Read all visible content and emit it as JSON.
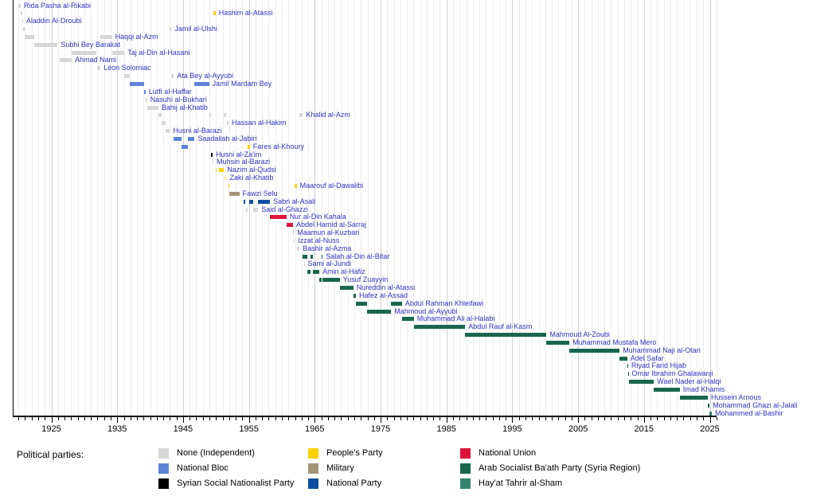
{
  "chart_data": {
    "type": "timeline",
    "title": "",
    "label_color": "#3032c0",
    "axis": {
      "unit": "year",
      "min": 1920,
      "max": 2026,
      "decade_labels": [
        "1925",
        "1935",
        "1945",
        "1955",
        "1965",
        "1975",
        "1985",
        "1995",
        "2005",
        "2015",
        "2025"
      ]
    },
    "legend": {
      "heading": "Political parties:",
      "columns": [
        [
          "none",
          "national_bloc",
          "ssnp"
        ],
        [
          "peoples",
          "military",
          "national_party"
        ],
        [
          "national_union",
          "baath",
          "hts"
        ]
      ]
    },
    "parties": {
      "none": {
        "label": "None (Independent)",
        "color": "#d6d6d6"
      },
      "national_bloc": {
        "label": "National Bloc",
        "color": "#5e84d8"
      },
      "ssnp": {
        "label": "Syrian Social Nationalist Party",
        "color": "#000000"
      },
      "peoples": {
        "label": "People's Party",
        "color": "#fbd104"
      },
      "military": {
        "label": "Military",
        "color": "#a49577"
      },
      "national_party": {
        "label": "National Party",
        "color": "#0d4ea3"
      },
      "national_union": {
        "label": "National Union",
        "color": "#dc143c"
      },
      "baath": {
        "label": "Arab Socialist Ba'ath Party (Syria Region)",
        "color": "#17664d"
      },
      "hts": {
        "label": "Hay'at Tahrir al-Sham",
        "color": "#318270"
      }
    },
    "people": [
      {
        "name": "Rida Pasha al-Rikabi",
        "terms": [
          {
            "start": 1920.0,
            "end": 1920.35,
            "party": "none"
          }
        ]
      },
      {
        "name": "Hashim al-Atassi",
        "terms": [
          {
            "start": 1920.35,
            "end": 1920.6,
            "party": "none"
          },
          {
            "start": 1949.6,
            "end": 1949.95,
            "party": "peoples"
          }
        ]
      },
      {
        "name": "Aladdin Al-Droubi",
        "terms": [
          {
            "start": 1920.55,
            "end": 1920.7,
            "party": "none"
          }
        ]
      },
      {
        "name": "Jamil al-Ulshi",
        "terms": [
          {
            "start": 1920.7,
            "end": 1920.95,
            "party": "none"
          },
          {
            "start": 1943.0,
            "end": 1943.25,
            "party": "none"
          }
        ]
      },
      {
        "name": "Haqqi al-Azm",
        "terms": [
          {
            "start": 1920.95,
            "end": 1922.45,
            "party": "none"
          },
          {
            "start": 1932.45,
            "end": 1934.2,
            "party": "none"
          }
        ]
      },
      {
        "name": "Subhi Bey Barakat",
        "terms": [
          {
            "start": 1922.45,
            "end": 1925.95,
            "party": "none"
          }
        ]
      },
      {
        "name": "Taj al-Din al-Hasani",
        "terms": [
          {
            "start": 1928.1,
            "end": 1931.9,
            "party": "none"
          },
          {
            "start": 1934.2,
            "end": 1936.1,
            "party": "none"
          }
        ]
      },
      {
        "name": "Ahmad Nami",
        "terms": [
          {
            "start": 1926.3,
            "end": 1928.1,
            "party": "none"
          }
        ]
      },
      {
        "name": "Léon Solomiac",
        "terms": [
          {
            "start": 1931.9,
            "end": 1932.45,
            "party": "none"
          }
        ]
      },
      {
        "name": "Ata Bey al-Ayyubi",
        "terms": [
          {
            "start": 1936.1,
            "end": 1936.95,
            "party": "none"
          },
          {
            "start": 1943.25,
            "end": 1943.6,
            "party": "none"
          }
        ]
      },
      {
        "name": "Jamil Mardam Bey",
        "terms": [
          {
            "start": 1936.95,
            "end": 1939.1,
            "party": "national_bloc"
          },
          {
            "start": 1946.75,
            "end": 1948.95,
            "party": "national_bloc"
          }
        ]
      },
      {
        "name": "Lutfi al-Haffar",
        "terms": [
          {
            "start": 1939.1,
            "end": 1939.3,
            "party": "national_bloc"
          }
        ]
      },
      {
        "name": "Nasuhi al-Bukhari",
        "terms": [
          {
            "start": 1939.3,
            "end": 1939.55,
            "party": "none"
          }
        ]
      },
      {
        "name": "Bahij al-Khatib",
        "terms": [
          {
            "start": 1939.55,
            "end": 1941.25,
            "party": "none"
          }
        ]
      },
      {
        "name": "Khalid al-Azm",
        "terms": [
          {
            "start": 1941.25,
            "end": 1941.7,
            "party": "none"
          },
          {
            "start": 1948.95,
            "end": 1949.25,
            "party": "none"
          },
          {
            "start": 1951.2,
            "end": 1951.6,
            "party": "none"
          },
          {
            "start": 1962.7,
            "end": 1963.2,
            "party": "none"
          }
        ]
      },
      {
        "name": "Hassan al-Hakim",
        "terms": [
          {
            "start": 1941.7,
            "end": 1942.3,
            "party": "none"
          },
          {
            "start": 1951.6,
            "end": 1951.9,
            "party": "none"
          }
        ]
      },
      {
        "name": "Husni al-Barazi",
        "terms": [
          {
            "start": 1942.3,
            "end": 1943.0,
            "party": "none"
          }
        ]
      },
      {
        "name": "Saadallah al-Jabiri",
        "terms": [
          {
            "start": 1943.6,
            "end": 1944.8,
            "party": "national_bloc"
          },
          {
            "start": 1945.75,
            "end": 1946.75,
            "party": "national_bloc"
          }
        ]
      },
      {
        "name": "Fares al-Khoury",
        "terms": [
          {
            "start": 1944.8,
            "end": 1945.75,
            "party": "national_bloc"
          },
          {
            "start": 1954.8,
            "end": 1955.15,
            "party": "peoples"
          }
        ]
      },
      {
        "name": "Husni al-Za'im",
        "terms": [
          {
            "start": 1949.25,
            "end": 1949.5,
            "party": "ssnp"
          }
        ]
      },
      {
        "name": "Muhsin al-Barazi",
        "terms": [
          {
            "start": 1949.5,
            "end": 1949.62,
            "party": "none"
          }
        ]
      },
      {
        "name": "Nazim al-Qudsi",
        "terms": [
          {
            "start": 1949.95,
            "end": 1950.05,
            "party": "peoples"
          },
          {
            "start": 1950.45,
            "end": 1951.2,
            "party": "peoples"
          }
        ]
      },
      {
        "name": "Zaki al-Khatib",
        "terms": [
          {
            "start": 1951.45,
            "end": 1951.6,
            "party": "peoples"
          }
        ]
      },
      {
        "name": "Maarouf al-Dawalibi",
        "terms": [
          {
            "start": 1951.85,
            "end": 1951.97,
            "party": "peoples"
          },
          {
            "start": 1961.95,
            "end": 1962.25,
            "party": "peoples"
          }
        ]
      },
      {
        "name": "Fawzi Selu",
        "terms": [
          {
            "start": 1951.97,
            "end": 1953.55,
            "party": "military"
          }
        ]
      },
      {
        "name": "Sabri al-Asali",
        "terms": [
          {
            "start": 1954.15,
            "end": 1954.5,
            "party": "national_party"
          },
          {
            "start": 1955.1,
            "end": 1955.65,
            "party": "national_party"
          },
          {
            "start": 1956.4,
            "end": 1958.2,
            "party": "national_party"
          }
        ]
      },
      {
        "name": "Said al-Ghazzi",
        "terms": [
          {
            "start": 1954.5,
            "end": 1954.85,
            "party": "none"
          },
          {
            "start": 1955.65,
            "end": 1956.4,
            "party": "none"
          }
        ]
      },
      {
        "name": "Nur al-Din Kahala",
        "terms": [
          {
            "start": 1958.2,
            "end": 1960.7,
            "party": "national_union"
          }
        ]
      },
      {
        "name": "Abdel Hamid al-Sarraj",
        "terms": [
          {
            "start": 1960.7,
            "end": 1961.7,
            "party": "national_union"
          }
        ]
      },
      {
        "name": "Maamun al-Kuzbari",
        "terms": [
          {
            "start": 1961.7,
            "end": 1961.85,
            "party": "none"
          }
        ]
      },
      {
        "name": "Izzat al-Nuss",
        "terms": [
          {
            "start": 1961.85,
            "end": 1961.97,
            "party": "none"
          }
        ]
      },
      {
        "name": "Bashir al-Azma",
        "terms": [
          {
            "start": 1962.25,
            "end": 1962.7,
            "party": "none"
          }
        ]
      },
      {
        "name": "Salah al-Din al-Bitar",
        "terms": [
          {
            "start": 1963.2,
            "end": 1963.85,
            "party": "baath"
          },
          {
            "start": 1964.4,
            "end": 1964.75,
            "party": "baath"
          },
          {
            "start": 1966.0,
            "end": 1966.2,
            "party": "baath"
          }
        ]
      },
      {
        "name": "Sami al-Jundi",
        "terms": [
          {
            "start": 1963.35,
            "end": 1963.45,
            "party": "none"
          }
        ]
      },
      {
        "name": "Amin al-Hafiz",
        "terms": [
          {
            "start": 1963.85,
            "end": 1964.4,
            "party": "baath"
          },
          {
            "start": 1964.75,
            "end": 1965.7,
            "party": "baath"
          }
        ]
      },
      {
        "name": "Yusuf Zuayyin",
        "terms": [
          {
            "start": 1965.7,
            "end": 1966.0,
            "party": "baath"
          },
          {
            "start": 1966.2,
            "end": 1968.8,
            "party": "baath"
          }
        ]
      },
      {
        "name": "Nureddin al-Atassi",
        "terms": [
          {
            "start": 1968.8,
            "end": 1970.85,
            "party": "baath"
          }
        ]
      },
      {
        "name": "Hafez al-Assad",
        "terms": [
          {
            "start": 1970.85,
            "end": 1971.25,
            "party": "baath"
          }
        ]
      },
      {
        "name": "Abdul Rahman Khleifawi",
        "terms": [
          {
            "start": 1971.25,
            "end": 1972.95,
            "party": "baath"
          },
          {
            "start": 1976.6,
            "end": 1978.25,
            "party": "baath"
          }
        ]
      },
      {
        "name": "Mahmoud al-Ayyubi",
        "terms": [
          {
            "start": 1972.95,
            "end": 1976.6,
            "party": "baath"
          }
        ]
      },
      {
        "name": "Muhammad Ali al-Halabi",
        "terms": [
          {
            "start": 1978.25,
            "end": 1980.05,
            "party": "baath"
          }
        ]
      },
      {
        "name": "Abdul Rauf al-Kasm",
        "terms": [
          {
            "start": 1980.05,
            "end": 1987.85,
            "party": "baath"
          }
        ]
      },
      {
        "name": "Mahmoud Al-Zoubi",
        "terms": [
          {
            "start": 1987.85,
            "end": 2000.2,
            "party": "baath"
          }
        ]
      },
      {
        "name": "Muhammad Mustafa Mero",
        "terms": [
          {
            "start": 2000.2,
            "end": 2003.7,
            "party": "baath"
          }
        ]
      },
      {
        "name": "Muhammad Naji al-Otari",
        "terms": [
          {
            "start": 2003.7,
            "end": 2011.3,
            "party": "baath"
          }
        ]
      },
      {
        "name": "Adel Safar",
        "terms": [
          {
            "start": 2011.3,
            "end": 2012.45,
            "party": "baath"
          }
        ]
      },
      {
        "name": "Riyad Farid Hijab",
        "terms": [
          {
            "start": 2012.45,
            "end": 2012.6,
            "party": "baath"
          }
        ]
      },
      {
        "name": "Omar Ibrahim Ghalawanji",
        "terms": [
          {
            "start": 2012.6,
            "end": 2012.67,
            "party": "baath"
          }
        ]
      },
      {
        "name": "Wael Nader al-Halqi",
        "terms": [
          {
            "start": 2012.67,
            "end": 2016.5,
            "party": "baath"
          }
        ]
      },
      {
        "name": "Imad Khamis",
        "terms": [
          {
            "start": 2016.5,
            "end": 2020.45,
            "party": "baath"
          }
        ]
      },
      {
        "name": "Hussein Arnous",
        "terms": [
          {
            "start": 2020.45,
            "end": 2024.7,
            "party": "baath"
          }
        ]
      },
      {
        "name": "Mohammad Ghazi al-Jalali",
        "terms": [
          {
            "start": 2024.7,
            "end": 2024.95,
            "party": "baath"
          }
        ]
      },
      {
        "name": "Mohammed al-Bashir",
        "terms": [
          {
            "start": 2024.95,
            "end": 2025.3,
            "party": "hts"
          }
        ]
      }
    ]
  }
}
